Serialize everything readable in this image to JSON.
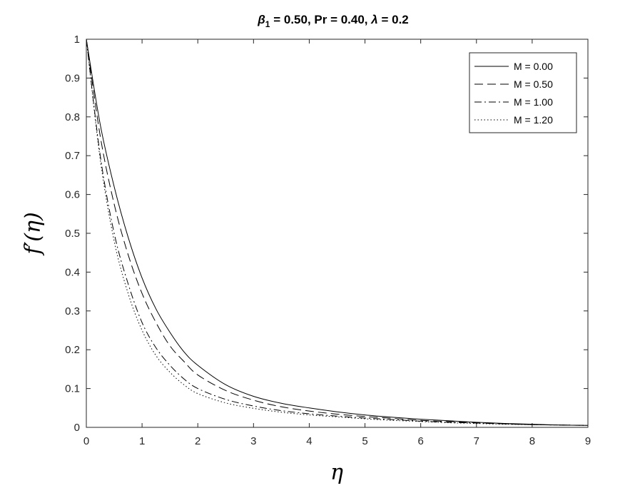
{
  "chart_data": {
    "type": "line",
    "title": {
      "beta": "β",
      "beta_sub": "1",
      "middle": " = 0.50, Pr = 0.40, ",
      "lambda": "λ",
      "end": " = 0.2"
    },
    "xlabel": "η",
    "ylabel": "f′(η)",
    "xlim": [
      0,
      9
    ],
    "ylim": [
      0,
      1
    ],
    "xticks": [
      "0",
      "1",
      "2",
      "3",
      "4",
      "5",
      "6",
      "7",
      "8",
      "9"
    ],
    "yticks": [
      "0",
      "0.1",
      "0.2",
      "0.3",
      "0.4",
      "0.5",
      "0.6",
      "0.7",
      "0.8",
      "0.9",
      "1"
    ],
    "grid": false,
    "legend_position": "top-right",
    "x": [
      0,
      0.25,
      0.5,
      0.75,
      1,
      1.25,
      1.5,
      1.75,
      2,
      2.5,
      3,
      3.5,
      4,
      4.5,
      5,
      5.5,
      6,
      6.5,
      7,
      7.5,
      8,
      8.5,
      9
    ],
    "series": [
      {
        "name": "M = 0.00",
        "style": "solid",
        "values": [
          1.0,
          0.78,
          0.62,
          0.49,
          0.385,
          0.305,
          0.245,
          0.195,
          0.16,
          0.11,
          0.08,
          0.062,
          0.05,
          0.04,
          0.032,
          0.026,
          0.021,
          0.017,
          0.013,
          0.01,
          0.008,
          0.006,
          0.005
        ]
      },
      {
        "name": "M = 0.50",
        "style": "dashed",
        "values": [
          1.0,
          0.75,
          0.575,
          0.445,
          0.345,
          0.27,
          0.21,
          0.17,
          0.135,
          0.095,
          0.07,
          0.053,
          0.042,
          0.034,
          0.028,
          0.023,
          0.018,
          0.015,
          0.012,
          0.009,
          0.007,
          0.006,
          0.005
        ]
      },
      {
        "name": "M = 1.00",
        "style": "dashdot",
        "values": [
          1.0,
          0.7,
          0.5,
          0.37,
          0.27,
          0.205,
          0.16,
          0.125,
          0.1,
          0.072,
          0.055,
          0.043,
          0.035,
          0.029,
          0.024,
          0.02,
          0.016,
          0.013,
          0.011,
          0.009,
          0.007,
          0.006,
          0.005
        ]
      },
      {
        "name": "M = 1.20",
        "style": "dotted",
        "values": [
          1.0,
          0.69,
          0.48,
          0.345,
          0.25,
          0.185,
          0.142,
          0.11,
          0.087,
          0.063,
          0.049,
          0.039,
          0.032,
          0.027,
          0.022,
          0.018,
          0.015,
          0.012,
          0.01,
          0.008,
          0.007,
          0.006,
          0.005
        ]
      }
    ]
  }
}
